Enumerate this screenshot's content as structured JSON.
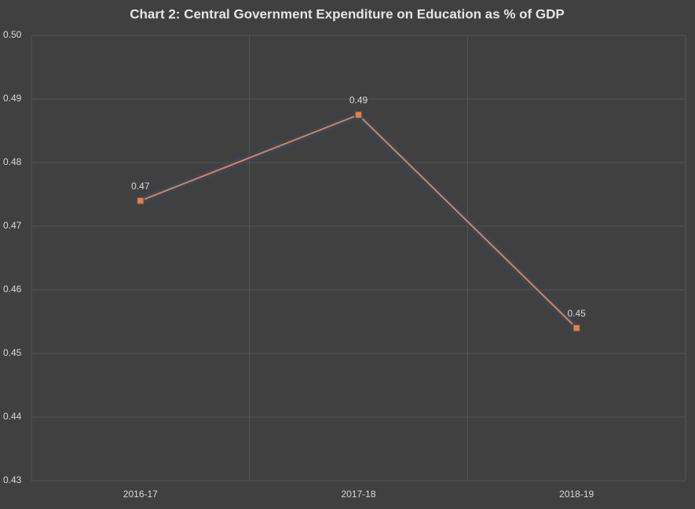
{
  "chart_data": {
    "type": "line",
    "title": "Chart 2: Central Government Expenditure on Education as % of GDP",
    "categories": [
      "2016-17",
      "2017-18",
      "2018-19"
    ],
    "series": [
      {
        "name": "Central Government Expenditure on Education as % of GDP",
        "color": "#ed7d31",
        "values": [
          0.474,
          0.4875,
          0.454
        ],
        "value_labels": [
          "0.47",
          "0.49",
          "0.45"
        ]
      }
    ],
    "ylim": [
      0.43,
      0.5
    ],
    "yticks": [
      0.43,
      0.44,
      0.45,
      0.46,
      0.47,
      0.48,
      0.49,
      {
        "value": 0.5,
        "label": "0.50"
      }
    ],
    "grid": true
  }
}
